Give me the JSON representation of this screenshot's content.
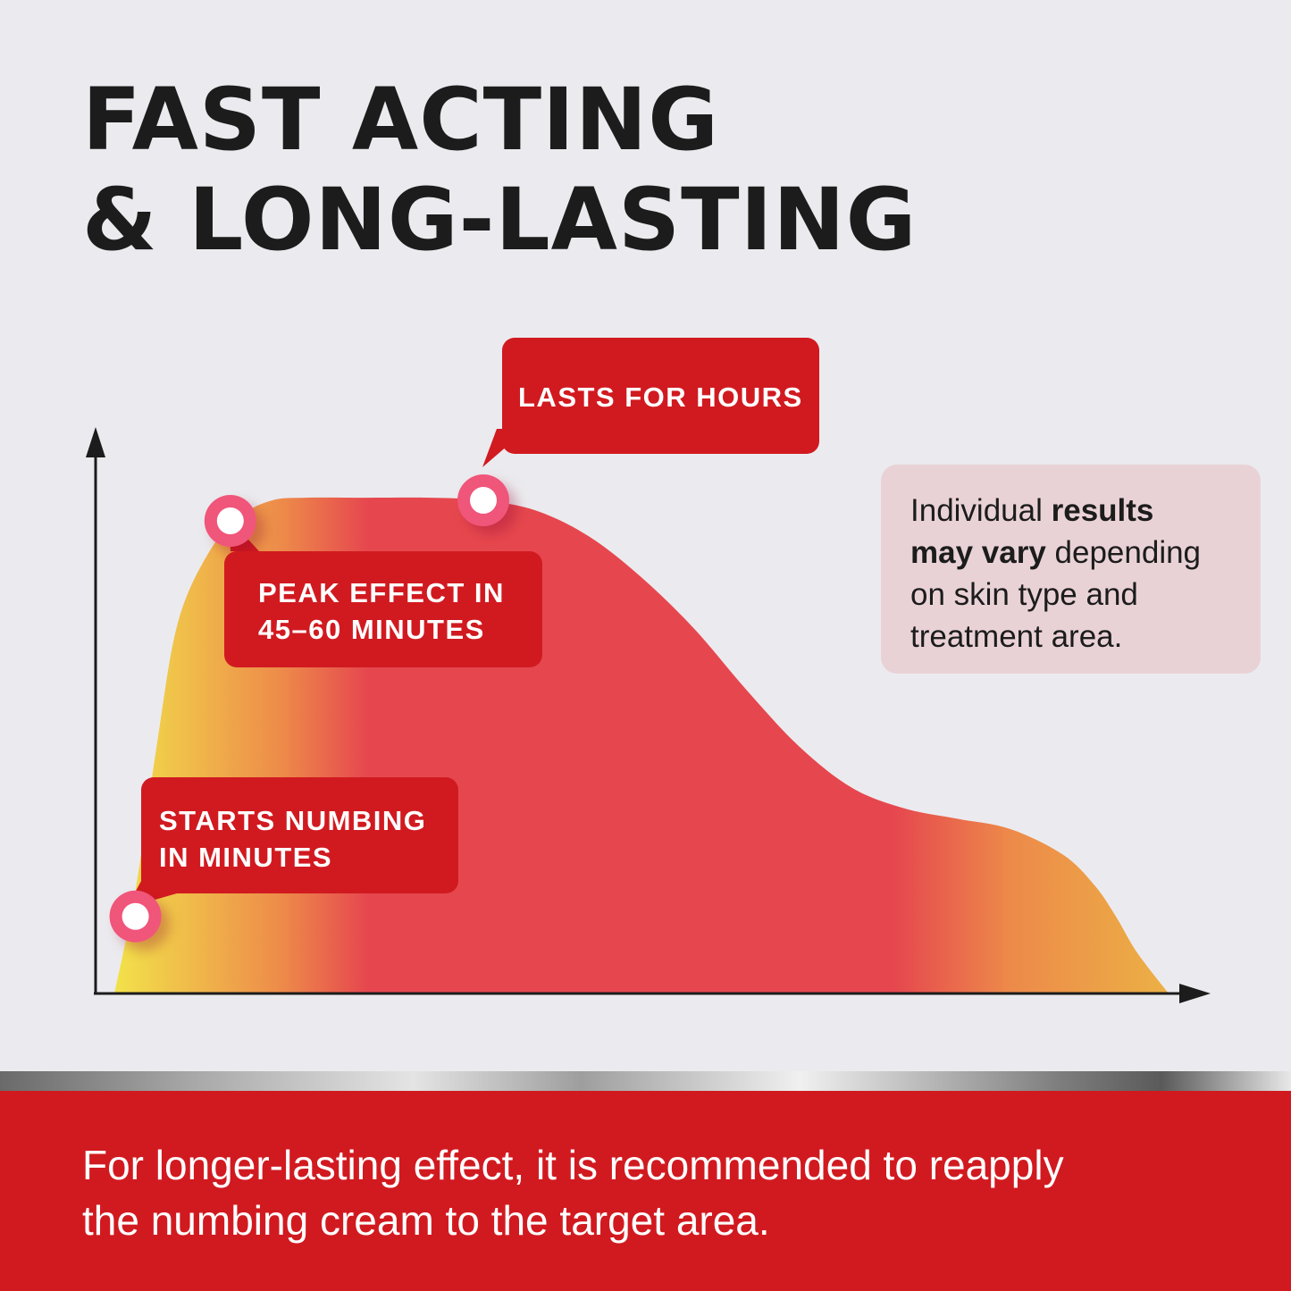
{
  "headline": {
    "line1": "FAST ACTING",
    "line2": "& LONG-LASTING"
  },
  "colors": {
    "background": "#ebebef",
    "accent_red": "#d11a20",
    "curve_red": "#e6474e",
    "curve_orange": "#ed8a4a",
    "curve_yellow": "#f2e24a",
    "marker_ring": "#f0557a",
    "note_bg": "#e9d2d6"
  },
  "callouts": {
    "peak": {
      "line1": "PEAK EFFECT IN",
      "line2": "45–60 MINUTES"
    },
    "hours": {
      "line1": "LASTS FOR HOURS"
    },
    "start": {
      "line1": "STARTS NUMBING",
      "line2": "IN MINUTES"
    }
  },
  "note": {
    "t1": "Individual ",
    "b1": "results",
    "b2": "may vary",
    "t2": " depending",
    "t3": "on skin type and",
    "t4": "treatment area."
  },
  "footer": {
    "line1": "For longer-lasting effect, it is recommended to reapply",
    "line2": "the numbing cream to the target area."
  },
  "chart_data": {
    "type": "area",
    "title": "",
    "xlabel": "",
    "ylabel": "",
    "xlim": [
      0,
      100
    ],
    "ylim": [
      0,
      100
    ],
    "grid": false,
    "x": [
      0,
      2,
      4,
      6,
      9,
      12,
      15,
      18,
      24,
      30,
      35,
      40,
      45,
      50,
      55,
      60,
      65,
      70,
      75,
      80,
      85,
      90,
      93,
      95,
      97,
      100
    ],
    "values": [
      0,
      20,
      48,
      72,
      86,
      93,
      96,
      96.5,
      96.5,
      96.5,
      96,
      94,
      89,
      81,
      71,
      59,
      48,
      40,
      36,
      34,
      32,
      27,
      21,
      15,
      8,
      0
    ],
    "markers": [
      {
        "x": 2,
        "y": 15,
        "label": "start"
      },
      {
        "x": 11,
        "y": 92,
        "label": "peak"
      },
      {
        "x": 35,
        "y": 96,
        "label": "hours"
      }
    ]
  }
}
